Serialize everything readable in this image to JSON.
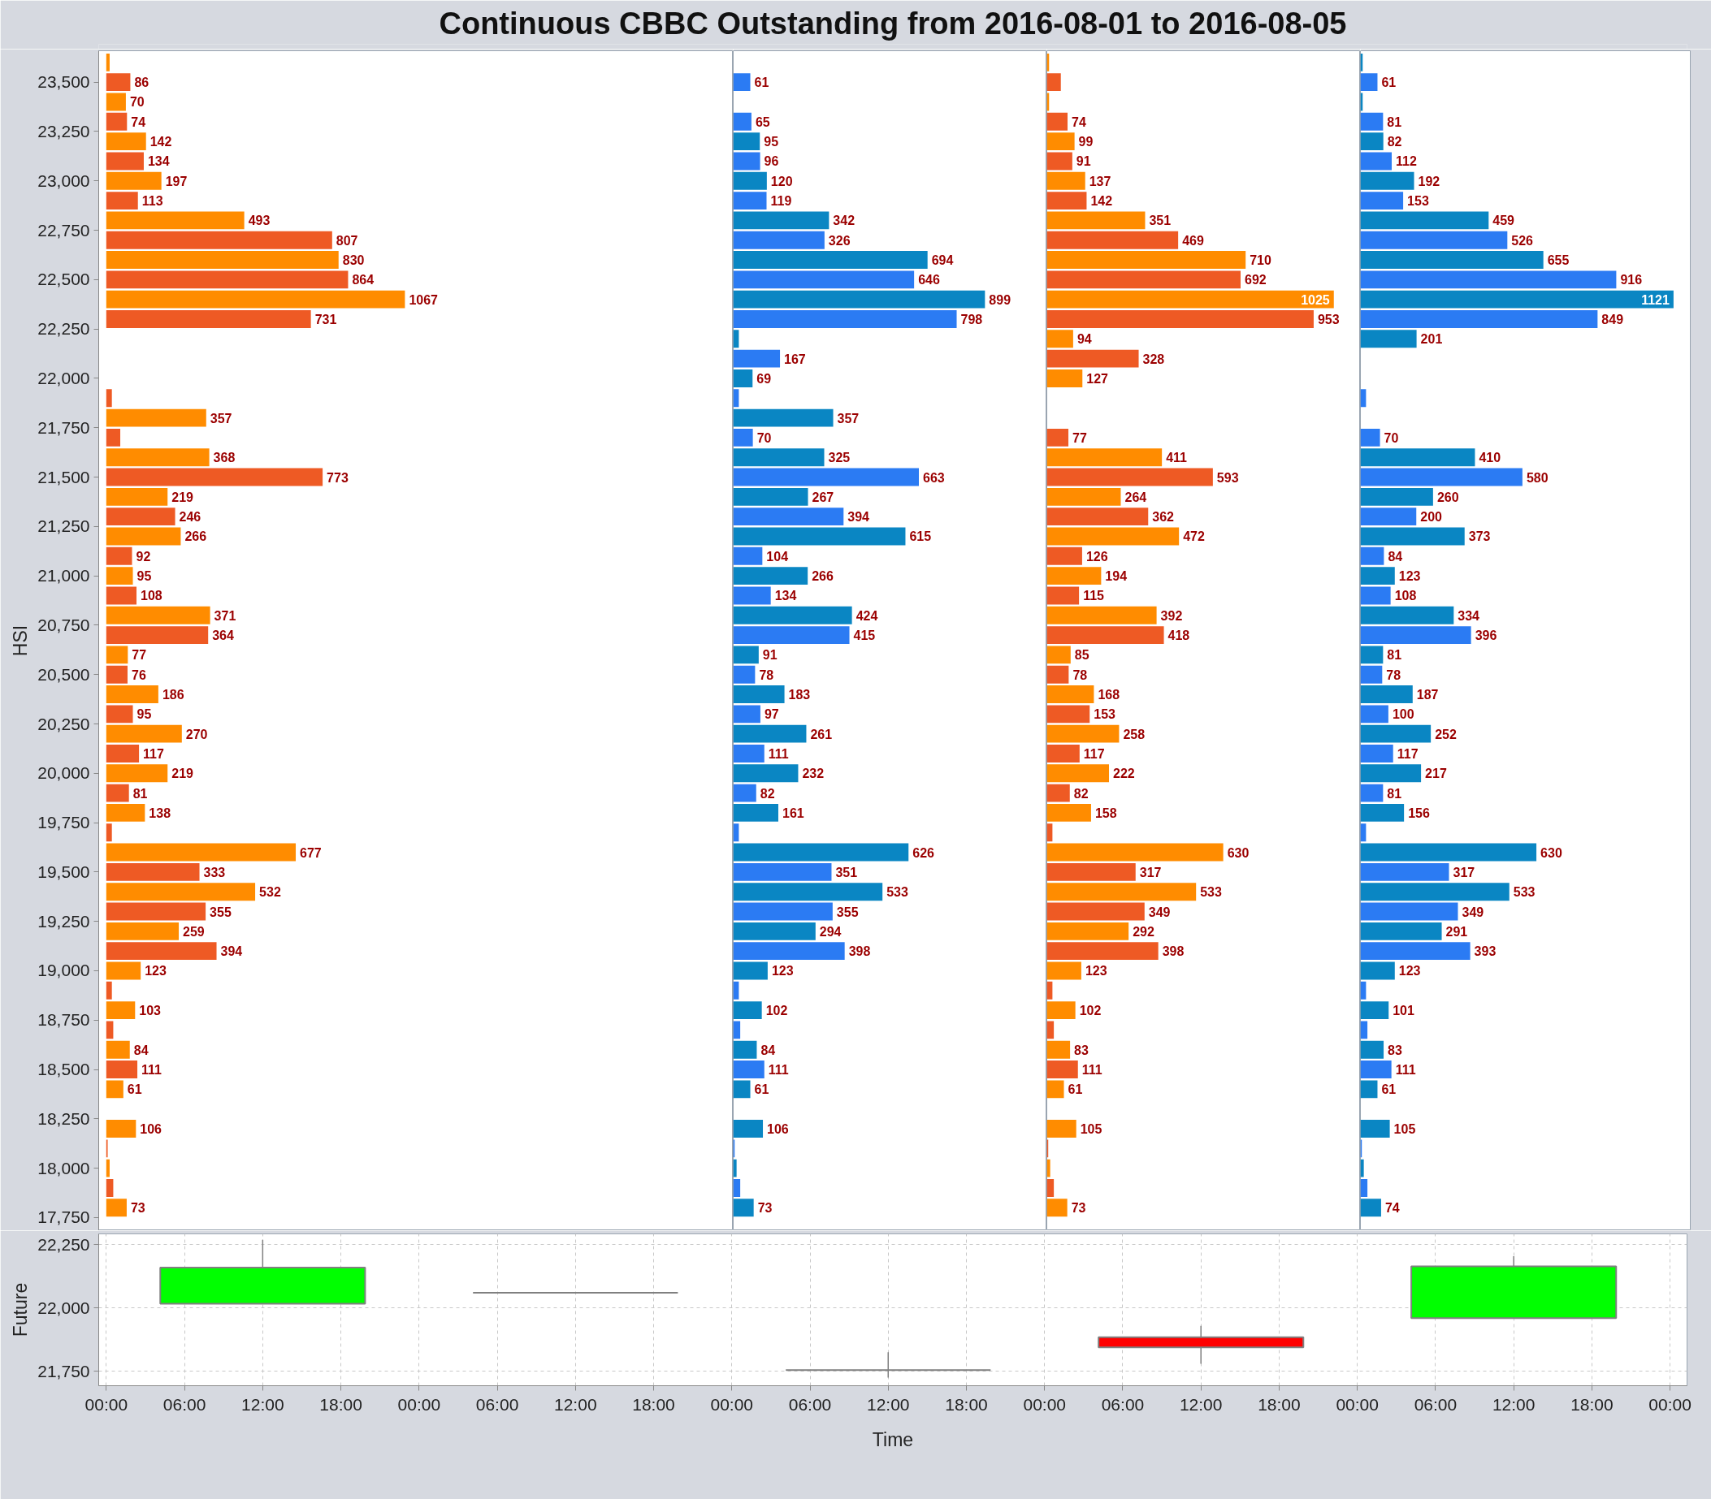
{
  "chart_data": [
    {
      "type": "bar",
      "orientation": "horizontal",
      "title": "Continuous CBBC Outstanding from 2016-08-01 to 2016-08-05",
      "ylabel": "HSI",
      "tick_labels": "y",
      "x": [
        23600,
        23500,
        23400,
        23300,
        23200,
        23100,
        23000,
        22900,
        22800,
        22700,
        22600,
        22500,
        22400,
        22300,
        22200,
        22100,
        22000,
        21900,
        21800,
        21700,
        21600,
        21500,
        21400,
        21300,
        21200,
        21100,
        21000,
        20900,
        20800,
        20700,
        20600,
        20500,
        20400,
        20300,
        20200,
        20100,
        20000,
        19900,
        19800,
        19700,
        19600,
        19500,
        19400,
        19300,
        19200,
        19100,
        19000,
        18900,
        18800,
        18700,
        18600,
        18500,
        18400,
        18300,
        18200,
        18100,
        18000,
        17900,
        17800
      ],
      "values": [
        12,
        86,
        70,
        74,
        142,
        134,
        197,
        113,
        493,
        807,
        830,
        864,
        1067,
        731,
        null,
        null,
        null,
        20,
        357,
        50,
        368,
        773,
        219,
        246,
        266,
        92,
        95,
        108,
        371,
        364,
        77,
        76,
        186,
        95,
        270,
        117,
        219,
        81,
        138,
        20,
        677,
        333,
        532,
        355,
        259,
        394,
        123,
        20,
        103,
        25,
        84,
        111,
        61,
        null,
        106,
        5,
        12,
        25,
        73
      ],
      "value_labels": [
        null,
        "86",
        "70",
        "74",
        "142",
        "134",
        "197",
        "113",
        "493",
        "807",
        "830",
        "864",
        "1067",
        "731",
        null,
        null,
        null,
        null,
        "357",
        null,
        "368",
        "773",
        "219",
        "246",
        "266",
        "92",
        "95",
        "108",
        "371",
        "364",
        "77",
        "76",
        "186",
        "95",
        "270",
        "117",
        "219",
        "81",
        "138",
        null,
        "677",
        "333",
        "532",
        "355",
        "259",
        "394",
        "123",
        null,
        "103",
        null,
        "84",
        "111",
        "61",
        null,
        "106",
        null,
        null,
        null,
        "73"
      ],
      "colors": [
        "#ff8c00",
        "#ee5a24",
        "#ff8c00",
        "#ee5a24",
        "#ff8c00",
        "#ee5a24",
        "#ff8c00",
        "#ee5a24",
        "#ff8c00",
        "#ee5a24",
        "#ff8c00",
        "#ee5a24",
        "#ff8c00",
        "#ee5a24",
        "#ff8c00",
        "#ee5a24",
        "#ff8c00",
        "#ee5a24",
        "#ff8c00",
        "#ee5a24",
        "#ff8c00",
        "#ee5a24",
        "#ff8c00",
        "#ee5a24",
        "#ff8c00",
        "#ee5a24",
        "#ff8c00",
        "#ee5a24",
        "#ff8c00",
        "#ee5a24",
        "#ff8c00",
        "#ee5a24",
        "#ff8c00",
        "#ee5a24",
        "#ff8c00",
        "#ee5a24",
        "#ff8c00",
        "#ee5a24",
        "#ff8c00",
        "#ee5a24",
        "#ff8c00",
        "#ee5a24",
        "#ff8c00",
        "#ee5a24",
        "#ff8c00",
        "#ee5a24",
        "#ff8c00",
        "#ee5a24",
        "#ff8c00",
        "#ee5a24",
        "#ff8c00",
        "#ee5a24",
        "#ff8c00",
        "#ee5a24",
        "#ff8c00",
        "#ee5a24",
        "#ff8c00",
        "#ee5a24",
        "#ff8c00"
      ],
      "xlim": [
        -27,
        2240
      ],
      "ylim": [
        17684,
        23659
      ],
      "yticks": [
        {
          "value": 17750,
          "label": "17,750"
        },
        {
          "value": 18000,
          "label": "18,000"
        },
        {
          "value": 18250,
          "label": "18,250"
        },
        {
          "value": 18500,
          "label": "18,500"
        },
        {
          "value": 18750,
          "label": "18,750"
        },
        {
          "value": 19000,
          "label": "19,000"
        },
        {
          "value": 19250,
          "label": "19,250"
        },
        {
          "value": 19500,
          "label": "19,500"
        },
        {
          "value": 19750,
          "label": "19,750"
        },
        {
          "value": 20000,
          "label": "20,000"
        },
        {
          "value": 20250,
          "label": "20,250"
        },
        {
          "value": 20500,
          "label": "20,500"
        },
        {
          "value": 20750,
          "label": "20,750"
        },
        {
          "value": 21000,
          "label": "21,000"
        },
        {
          "value": 21250,
          "label": "21,250"
        },
        {
          "value": 21500,
          "label": "21,500"
        },
        {
          "value": 21750,
          "label": "21,750"
        },
        {
          "value": 22000,
          "label": "22,000"
        },
        {
          "value": 22250,
          "label": "22,250"
        },
        {
          "value": 22500,
          "label": "22,500"
        },
        {
          "value": 22750,
          "label": "22,750"
        },
        {
          "value": 23000,
          "label": "23,000"
        },
        {
          "value": 23250,
          "label": "23,250"
        },
        {
          "value": 23500,
          "label": "23,500"
        }
      ]
    },
    {
      "type": "bar",
      "orientation": "horizontal",
      "tick_labels": false,
      "x": [
        23500,
        23400,
        23300,
        23200,
        23100,
        23000,
        22900,
        22800,
        22700,
        22600,
        22500,
        22400,
        22300,
        22200,
        22100,
        22000,
        21900,
        21800,
        21700,
        21600,
        21500,
        21400,
        21300,
        21200,
        21100,
        21000,
        20900,
        20800,
        20700,
        20600,
        20500,
        20400,
        20300,
        20200,
        20100,
        20000,
        19900,
        19800,
        19700,
        19600,
        19500,
        19400,
        19300,
        19200,
        19100,
        19000,
        18900,
        18800,
        18700,
        18600,
        18500,
        18400,
        18300,
        18200,
        18100,
        18000,
        17900,
        17800
      ],
      "values": [
        61,
        null,
        65,
        95,
        96,
        120,
        119,
        342,
        326,
        694,
        646,
        899,
        798,
        20,
        167,
        69,
        20,
        357,
        70,
        325,
        663,
        267,
        394,
        615,
        104,
        266,
        134,
        424,
        415,
        91,
        78,
        183,
        97,
        261,
        111,
        232,
        82,
        161,
        20,
        626,
        351,
        533,
        355,
        294,
        398,
        123,
        20,
        102,
        25,
        84,
        111,
        61,
        null,
        106,
        5,
        12,
        25,
        73
      ],
      "value_labels": [
        "61",
        null,
        "65",
        "95",
        "96",
        "120",
        "119",
        "342",
        "326",
        "694",
        "646",
        "899",
        "798",
        null,
        "167",
        "69",
        null,
        "357",
        "70",
        "325",
        "663",
        "267",
        "394",
        "615",
        "104",
        "266",
        "134",
        "424",
        "415",
        "91",
        "78",
        "183",
        "97",
        "261",
        "111",
        "232",
        "82",
        "161",
        null,
        "626",
        "351",
        "533",
        "355",
        "294",
        "398",
        "123",
        null,
        "102",
        null,
        "84",
        "111",
        "61",
        null,
        "106",
        null,
        null,
        null,
        "73"
      ],
      "colors": [
        "#2b7bf3",
        "#0a86c3",
        "#2b7bf3",
        "#0a86c3",
        "#2b7bf3",
        "#0a86c3",
        "#2b7bf3",
        "#0a86c3",
        "#2b7bf3",
        "#0a86c3",
        "#2b7bf3",
        "#0a86c3",
        "#2b7bf3",
        "#0a86c3",
        "#2b7bf3",
        "#0a86c3",
        "#2b7bf3",
        "#0a86c3",
        "#2b7bf3",
        "#0a86c3",
        "#2b7bf3",
        "#0a86c3",
        "#2b7bf3",
        "#0a86c3",
        "#2b7bf3",
        "#0a86c3",
        "#2b7bf3",
        "#0a86c3",
        "#2b7bf3",
        "#0a86c3",
        "#2b7bf3",
        "#0a86c3",
        "#2b7bf3",
        "#0a86c3",
        "#2b7bf3",
        "#0a86c3",
        "#2b7bf3",
        "#0a86c3",
        "#2b7bf3",
        "#0a86c3",
        "#2b7bf3",
        "#0a86c3",
        "#2b7bf3",
        "#0a86c3",
        "#2b7bf3",
        "#0a86c3",
        "#2b7bf3",
        "#0a86c3",
        "#2b7bf3",
        "#0a86c3",
        "#2b7bf3",
        "#0a86c3",
        "#2b7bf3",
        "#0a86c3",
        "#2b7bf3",
        "#0a86c3",
        "#2b7bf3",
        "#0a86c3"
      ],
      "xlim": [
        0,
        1120
      ],
      "ylim": [
        17684,
        23659
      ]
    },
    {
      "type": "bar",
      "orientation": "horizontal",
      "tick_labels": false,
      "x": [
        23600,
        23500,
        23400,
        23300,
        23200,
        23100,
        23000,
        22900,
        22800,
        22700,
        22600,
        22500,
        22400,
        22300,
        22200,
        22100,
        22000,
        21900,
        21800,
        21700,
        21600,
        21500,
        21400,
        21300,
        21200,
        21100,
        21000,
        20900,
        20800,
        20700,
        20600,
        20500,
        20400,
        20300,
        20200,
        20100,
        20000,
        19900,
        19800,
        19700,
        19600,
        19500,
        19400,
        19300,
        19200,
        19100,
        19000,
        18900,
        18800,
        18700,
        18600,
        18500,
        18400,
        18300,
        18200,
        18100,
        18000,
        17900,
        17800
      ],
      "values": [
        8,
        50,
        8,
        74,
        99,
        91,
        137,
        142,
        351,
        469,
        710,
        692,
        1025,
        953,
        94,
        328,
        127,
        null,
        null,
        77,
        411,
        593,
        264,
        362,
        472,
        126,
        194,
        115,
        392,
        418,
        85,
        78,
        168,
        153,
        258,
        117,
        222,
        82,
        158,
        20,
        630,
        317,
        533,
        349,
        292,
        398,
        123,
        20,
        102,
        25,
        83,
        111,
        61,
        null,
        105,
        5,
        12,
        25,
        73
      ],
      "value_labels": [
        null,
        null,
        null,
        "74",
        "99",
        "91",
        "137",
        "142",
        "351",
        "469",
        "710",
        "692",
        "1025",
        "953",
        "94",
        "328",
        "127",
        null,
        null,
        "77",
        "411",
        "593",
        "264",
        "362",
        "472",
        "126",
        "194",
        "115",
        "392",
        "418",
        "85",
        "78",
        "168",
        "153",
        "258",
        "117",
        "222",
        "82",
        "158",
        null,
        "630",
        "317",
        "533",
        "349",
        "292",
        "398",
        "123",
        null,
        "102",
        null,
        "83",
        "111",
        "61",
        null,
        "105",
        null,
        null,
        null,
        "73"
      ],
      "colors": [
        "#ff8c00",
        "#ee5a24",
        "#ff8c00",
        "#ee5a24",
        "#ff8c00",
        "#ee5a24",
        "#ff8c00",
        "#ee5a24",
        "#ff8c00",
        "#ee5a24",
        "#ff8c00",
        "#ee5a24",
        "#ff8c00",
        "#ee5a24",
        "#ff8c00",
        "#ee5a24",
        "#ff8c00",
        "#ee5a24",
        "#ff8c00",
        "#ee5a24",
        "#ff8c00",
        "#ee5a24",
        "#ff8c00",
        "#ee5a24",
        "#ff8c00",
        "#ee5a24",
        "#ff8c00",
        "#ee5a24",
        "#ff8c00",
        "#ee5a24",
        "#ff8c00",
        "#ee5a24",
        "#ff8c00",
        "#ee5a24",
        "#ff8c00",
        "#ee5a24",
        "#ff8c00",
        "#ee5a24",
        "#ff8c00",
        "#ee5a24",
        "#ff8c00",
        "#ee5a24",
        "#ff8c00",
        "#ee5a24",
        "#ff8c00",
        "#ee5a24",
        "#ff8c00",
        "#ee5a24",
        "#ff8c00",
        "#ee5a24",
        "#ff8c00",
        "#ee5a24",
        "#ff8c00",
        "#ee5a24",
        "#ff8c00",
        "#ee5a24",
        "#ff8c00",
        "#ee5a24",
        "#ff8c00"
      ],
      "xlim": [
        0,
        1120
      ],
      "ylim": [
        17684,
        23659
      ]
    },
    {
      "type": "bar",
      "orientation": "horizontal",
      "tick_labels": false,
      "x": [
        23600,
        23500,
        23400,
        23300,
        23200,
        23100,
        23000,
        22900,
        22800,
        22700,
        22600,
        22500,
        22400,
        22300,
        22200,
        22100,
        22000,
        21900,
        21800,
        21700,
        21600,
        21500,
        21400,
        21300,
        21200,
        21100,
        21000,
        20900,
        20800,
        20700,
        20600,
        20500,
        20400,
        20300,
        20200,
        20100,
        20000,
        19900,
        19800,
        19700,
        19600,
        19500,
        19400,
        19300,
        19200,
        19100,
        19000,
        18900,
        18800,
        18700,
        18600,
        18500,
        18400,
        18300,
        18200,
        18100,
        18000,
        17900,
        17800
      ],
      "values": [
        8,
        61,
        8,
        81,
        82,
        112,
        192,
        153,
        459,
        526,
        655,
        916,
        1121,
        849,
        201,
        null,
        null,
        20,
        null,
        70,
        410,
        580,
        260,
        200,
        373,
        84,
        123,
        108,
        334,
        396,
        81,
        78,
        187,
        100,
        252,
        117,
        217,
        81,
        156,
        20,
        630,
        317,
        533,
        349,
        291,
        393,
        123,
        20,
        101,
        25,
        83,
        111,
        61,
        null,
        105,
        5,
        12,
        25,
        74
      ],
      "value_labels": [
        null,
        "61",
        null,
        "81",
        "82",
        "112",
        "192",
        "153",
        "459",
        "526",
        "655",
        "916",
        "1121",
        "849",
        "201",
        null,
        null,
        null,
        null,
        "70",
        "410",
        "580",
        "260",
        "200",
        "373",
        "84",
        "123",
        "108",
        "334",
        "396",
        "81",
        "78",
        "187",
        "100",
        "252",
        "117",
        "217",
        "81",
        "156",
        null,
        "630",
        "317",
        "533",
        "349",
        "291",
        "393",
        "123",
        null,
        "101",
        null,
        "83",
        "111",
        "61",
        null,
        "105",
        null,
        null,
        null,
        "74"
      ],
      "colors": [
        "#0a86c3",
        "#2b7bf3",
        "#0a86c3",
        "#2b7bf3",
        "#0a86c3",
        "#2b7bf3",
        "#0a86c3",
        "#2b7bf3",
        "#0a86c3",
        "#2b7bf3",
        "#0a86c3",
        "#2b7bf3",
        "#0a86c3",
        "#2b7bf3",
        "#0a86c3",
        "#2b7bf3",
        "#0a86c3",
        "#2b7bf3",
        "#0a86c3",
        "#2b7bf3",
        "#0a86c3",
        "#2b7bf3",
        "#0a86c3",
        "#2b7bf3",
        "#0a86c3",
        "#2b7bf3",
        "#0a86c3",
        "#2b7bf3",
        "#0a86c3",
        "#2b7bf3",
        "#0a86c3",
        "#2b7bf3",
        "#0a86c3",
        "#2b7bf3",
        "#0a86c3",
        "#2b7bf3",
        "#0a86c3",
        "#2b7bf3",
        "#0a86c3",
        "#2b7bf3",
        "#0a86c3",
        "#2b7bf3",
        "#0a86c3",
        "#2b7bf3",
        "#0a86c3",
        "#2b7bf3",
        "#0a86c3",
        "#2b7bf3",
        "#0a86c3",
        "#2b7bf3",
        "#0a86c3",
        "#2b7bf3",
        "#0a86c3",
        "#2b7bf3",
        "#0a86c3",
        "#2b7bf3",
        "#0a86c3",
        "#2b7bf3",
        "#0a86c3"
      ],
      "xlim": [
        0,
        1181
      ],
      "ylim": [
        17684,
        23659
      ]
    },
    {
      "type": "candlestick",
      "ylabel": "Future",
      "xlabel": "Time",
      "grid": true,
      "x": [
        "2016-08-01T12:00",
        "2016-08-02T12:00",
        "2016-08-03T12:00",
        "2016-08-04T12:00",
        "2016-08-05T12:00"
      ],
      "ohlc": [
        [
          22017,
          22270,
          22017,
          22160
        ],
        [
          22060,
          22060,
          22060,
          22060
        ],
        [
          21755,
          21825,
          21725,
          21755
        ],
        [
          21885,
          21930,
          21780,
          21845
        ],
        [
          21960,
          22205,
          21960,
          22165
        ]
      ],
      "colors": [
        "#00ff00",
        "#808080",
        "#808080",
        "#ff0000",
        "#00ff00"
      ],
      "xlim": [
        "2016-07-31T23:25",
        "2016-08-06T01:18"
      ],
      "ylim": [
        21693,
        22293
      ],
      "xticks": [
        {
          "value": "2016-08-01T00:00",
          "label": "00:00"
        },
        {
          "value": "2016-08-01T06:00",
          "label": "06:00"
        },
        {
          "value": "2016-08-01T12:00",
          "label": "12:00"
        },
        {
          "value": "2016-08-01T18:00",
          "label": "18:00"
        },
        {
          "value": "2016-08-02T00:00",
          "label": "00:00"
        },
        {
          "value": "2016-08-02T06:00",
          "label": "06:00"
        },
        {
          "value": "2016-08-02T12:00",
          "label": "12:00"
        },
        {
          "value": "2016-08-02T18:00",
          "label": "18:00"
        },
        {
          "value": "2016-08-03T00:00",
          "label": "00:00"
        },
        {
          "value": "2016-08-03T06:00",
          "label": "06:00"
        },
        {
          "value": "2016-08-03T12:00",
          "label": "12:00"
        },
        {
          "value": "2016-08-03T18:00",
          "label": "18:00"
        },
        {
          "value": "2016-08-04T00:00",
          "label": "00:00"
        },
        {
          "value": "2016-08-04T06:00",
          "label": "06:00"
        },
        {
          "value": "2016-08-04T12:00",
          "label": "12:00"
        },
        {
          "value": "2016-08-04T18:00",
          "label": "18:00"
        },
        {
          "value": "2016-08-05T00:00",
          "label": "00:00"
        },
        {
          "value": "2016-08-05T06:00",
          "label": "06:00"
        },
        {
          "value": "2016-08-05T12:00",
          "label": "12:00"
        },
        {
          "value": "2016-08-05T18:00",
          "label": "18:00"
        },
        {
          "value": "2016-08-06T00:00",
          "label": "00:00"
        }
      ],
      "yticks": [
        {
          "value": 21750,
          "label": "21,750"
        },
        {
          "value": 22000,
          "label": "22,000"
        },
        {
          "value": 22250,
          "label": "22,250"
        }
      ]
    }
  ]
}
